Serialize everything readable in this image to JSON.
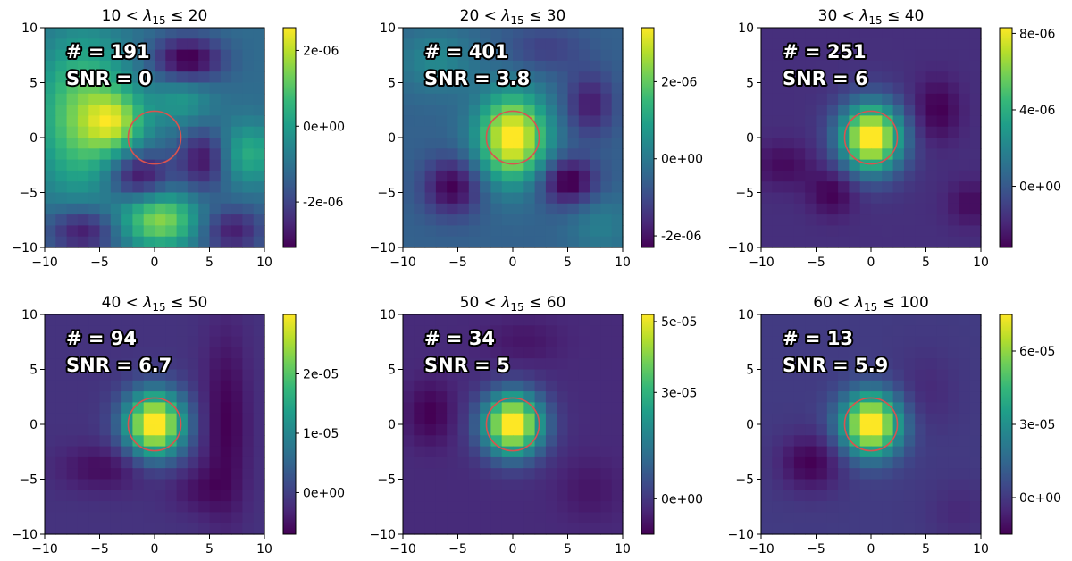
{
  "figure_title": "",
  "colormap_stops": [
    "#440154",
    "#482878",
    "#3e4989",
    "#31688e",
    "#26828e",
    "#1f9e89",
    "#35b779",
    "#6ece58",
    "#b5de2b",
    "#fde725"
  ],
  "marker_color": "#d9534f",
  "chart_data": [
    {
      "type": "heatmap",
      "title": "10 < λ15 ≤ 20",
      "title_parts": {
        "lo": "10",
        "lambda": "λ",
        "sub": "15",
        "hi": "20"
      },
      "count_label": "# = 191",
      "snr_label": "SNR = 0",
      "xlim": [
        -10,
        10
      ],
      "ylim": [
        -10,
        10
      ],
      "xticks": [
        "−10",
        "−5",
        "0",
        "5",
        "10"
      ],
      "yticks": [
        "10",
        "5",
        "0",
        "−5",
        "−10"
      ],
      "colorbar": {
        "vmin": -3.2e-06,
        "vmax": 2.6e-06,
        "ticks": [
          {
            "value": 2e-06,
            "label": "2e-06"
          },
          {
            "value": 0,
            "label": "0e+00"
          },
          {
            "value": -2e-06,
            "label": "-2e-06"
          }
        ]
      },
      "blobs": [
        {
          "x": 0.5,
          "y": -7.5,
          "sx": 2.5,
          "sy": 1.8,
          "a": 1.2
        },
        {
          "x": -6.5,
          "y": 2.0,
          "sx": 3.0,
          "sy": 5.0,
          "a": 1.1
        },
        {
          "x": -3.5,
          "y": 1.5,
          "sx": 1.8,
          "sy": 1.8,
          "a": 0.9
        },
        {
          "x": 8.5,
          "y": -1.5,
          "sx": 2.0,
          "sy": 2.0,
          "a": 0.7
        },
        {
          "x": 2.5,
          "y": 3.5,
          "sx": 2.0,
          "sy": 1.8,
          "a": 0.5
        },
        {
          "x": 3.0,
          "y": 7.0,
          "sx": 2.2,
          "sy": 1.5,
          "a": -1.0
        },
        {
          "x": -1.5,
          "y": -3.5,
          "sx": 2.0,
          "sy": 1.6,
          "a": -0.9
        },
        {
          "x": 4.5,
          "y": -2.0,
          "sx": 1.6,
          "sy": 2.0,
          "a": -0.8
        },
        {
          "x": -6.5,
          "y": -8.5,
          "sx": 2.2,
          "sy": 1.5,
          "a": -0.8
        },
        {
          "x": 7.0,
          "y": -8.5,
          "sx": 2.0,
          "sy": 1.5,
          "a": -0.7
        }
      ]
    },
    {
      "type": "heatmap",
      "title": "20 < λ15 ≤ 30",
      "title_parts": {
        "lo": "20",
        "lambda": "λ",
        "sub": "15",
        "hi": "30"
      },
      "count_label": "# = 401",
      "snr_label": "SNR = 3.8",
      "xlim": [
        -10,
        10
      ],
      "ylim": [
        -10,
        10
      ],
      "xticks": [
        "−10",
        "−5",
        "0",
        "5",
        "10"
      ],
      "yticks": [
        "10",
        "5",
        "0",
        "−5",
        "−10"
      ],
      "colorbar": {
        "vmin": -2.3e-06,
        "vmax": 3.4e-06,
        "ticks": [
          {
            "value": 2e-06,
            "label": "2e-06"
          },
          {
            "value": 0,
            "label": "0e+00"
          },
          {
            "value": -2e-06,
            "label": "-2e-06"
          }
        ]
      },
      "blobs": [
        {
          "x": 0,
          "y": 0,
          "sx": 2.2,
          "sy": 2.8,
          "a": 1.8
        },
        {
          "x": -5.5,
          "y": -4.5,
          "sx": 1.8,
          "sy": 1.8,
          "a": -0.8
        },
        {
          "x": 5.0,
          "y": -4.0,
          "sx": 1.8,
          "sy": 1.5,
          "a": -0.9
        },
        {
          "x": 7.0,
          "y": 3.0,
          "sx": 1.5,
          "sy": 2.0,
          "a": -0.6
        },
        {
          "x": -7.0,
          "y": 7.0,
          "sx": 2.5,
          "sy": 2.0,
          "a": 0.4
        },
        {
          "x": 3.0,
          "y": 8.0,
          "sx": 2.5,
          "sy": 1.5,
          "a": -0.3
        },
        {
          "x": 8.0,
          "y": -8.0,
          "sx": 2.0,
          "sy": 2.0,
          "a": 0.3
        }
      ]
    },
    {
      "type": "heatmap",
      "title": "30 < λ15 ≤ 40",
      "title_parts": {
        "lo": "30",
        "lambda": "λ",
        "sub": "15",
        "hi": "40"
      },
      "count_label": "# = 251",
      "snr_label": "SNR = 6",
      "xlim": [
        -10,
        10
      ],
      "ylim": [
        -10,
        10
      ],
      "xticks": [
        "−10",
        "−5",
        "0",
        "5",
        "10"
      ],
      "yticks": [
        "10",
        "5",
        "0",
        "−5",
        "−10"
      ],
      "colorbar": {
        "vmin": -3.2e-06,
        "vmax": 8.3e-06,
        "ticks": [
          {
            "value": 8e-06,
            "label": "8e-06"
          },
          {
            "value": 4e-06,
            "label": "4e-06"
          },
          {
            "value": 0,
            "label": "0e+00"
          }
        ]
      },
      "blobs": [
        {
          "x": 0,
          "y": 0,
          "sx": 2.0,
          "sy": 2.2,
          "a": 2.5
        },
        {
          "x": 6.0,
          "y": 2.5,
          "sx": 1.5,
          "sy": 2.0,
          "a": -0.4
        },
        {
          "x": -3.5,
          "y": -5.0,
          "sx": 1.5,
          "sy": 1.5,
          "a": -0.4
        },
        {
          "x": -8.0,
          "y": -2.5,
          "sx": 2.0,
          "sy": 1.5,
          "a": -0.3
        },
        {
          "x": 9.0,
          "y": -6.0,
          "sx": 1.5,
          "sy": 1.5,
          "a": -0.3
        }
      ]
    },
    {
      "type": "heatmap",
      "title": "40 < λ15 ≤ 50",
      "title_parts": {
        "lo": "40",
        "lambda": "λ",
        "sub": "15",
        "hi": "50"
      },
      "count_label": "# = 94",
      "snr_label": "SNR = 6.7",
      "xlim": [
        -10,
        10
      ],
      "ylim": [
        -10,
        10
      ],
      "xticks": [
        "−10",
        "−5",
        "0",
        "5",
        "10"
      ],
      "yticks": [
        "10",
        "5",
        "0",
        "−5",
        "−10"
      ],
      "colorbar": {
        "vmin": -7e-06,
        "vmax": 3e-05,
        "ticks": [
          {
            "value": 2e-05,
            "label": "2e-05"
          },
          {
            "value": 1e-05,
            "label": "1e-05"
          },
          {
            "value": 0,
            "label": "0e+00"
          }
        ]
      },
      "blobs": [
        {
          "x": 0,
          "y": 0,
          "sx": 1.9,
          "sy": 2.1,
          "a": 3.0
        },
        {
          "x": 6.5,
          "y": 0,
          "sx": 1.5,
          "sy": 6.0,
          "a": -0.5
        },
        {
          "x": -4.5,
          "y": -4.0,
          "sx": 3.0,
          "sy": 1.5,
          "a": -0.4
        },
        {
          "x": 4.0,
          "y": -6.0,
          "sx": 2.0,
          "sy": 1.5,
          "a": -0.3
        }
      ]
    },
    {
      "type": "heatmap",
      "title": "50 < λ15 ≤ 60",
      "title_parts": {
        "lo": "50",
        "lambda": "λ",
        "sub": "15",
        "hi": "60"
      },
      "count_label": "# = 34",
      "snr_label": "SNR = 5",
      "xlim": [
        -10,
        10
      ],
      "ylim": [
        -10,
        10
      ],
      "xticks": [
        "−10",
        "−5",
        "0",
        "5",
        "10"
      ],
      "yticks": [
        "10",
        "5",
        "0",
        "−5",
        "−10"
      ],
      "colorbar": {
        "vmin": -1e-05,
        "vmax": 5.2e-05,
        "ticks": [
          {
            "value": 5e-05,
            "label": "5e-05"
          },
          {
            "value": 3e-05,
            "label": "3e-05"
          },
          {
            "value": 0,
            "label": "0e+00"
          }
        ]
      },
      "blobs": [
        {
          "x": 0,
          "y": 0,
          "sx": 1.9,
          "sy": 2.0,
          "a": 3.0
        },
        {
          "x": -7.5,
          "y": 1.0,
          "sx": 1.5,
          "sy": 2.0,
          "a": -0.4
        },
        {
          "x": 1.0,
          "y": 7.5,
          "sx": 2.5,
          "sy": 1.5,
          "a": -0.2
        },
        {
          "x": 7.0,
          "y": -6.0,
          "sx": 2.0,
          "sy": 2.0,
          "a": -0.2
        }
      ]
    },
    {
      "type": "heatmap",
      "title": "60 < λ15 ≤ 100",
      "title_parts": {
        "lo": "60",
        "lambda": "λ",
        "sub": "15",
        "hi": "100"
      },
      "count_label": "# = 13",
      "snr_label": "SNR = 5.9",
      "xlim": [
        -10,
        10
      ],
      "ylim": [
        -10,
        10
      ],
      "xticks": [
        "−10",
        "−5",
        "0",
        "5",
        "10"
      ],
      "yticks": [
        "10",
        "5",
        "0",
        "−5",
        "−10"
      ],
      "colorbar": {
        "vmin": -1.5e-05,
        "vmax": 7.5e-05,
        "ticks": [
          {
            "value": 6e-05,
            "label": "6e-05"
          },
          {
            "value": 3e-05,
            "label": "3e-05"
          },
          {
            "value": 0,
            "label": "0e+00"
          }
        ]
      },
      "blobs": [
        {
          "x": 0,
          "y": 0,
          "sx": 1.9,
          "sy": 2.0,
          "a": 3.0
        },
        {
          "x": -5.5,
          "y": -3.5,
          "sx": 2.0,
          "sy": 1.8,
          "a": -0.6
        },
        {
          "x": 5.0,
          "y": 3.0,
          "sx": 2.0,
          "sy": 2.5,
          "a": -0.2
        },
        {
          "x": 8.0,
          "y": -8.0,
          "sx": 2.0,
          "sy": 2.0,
          "a": -0.2
        }
      ]
    }
  ]
}
